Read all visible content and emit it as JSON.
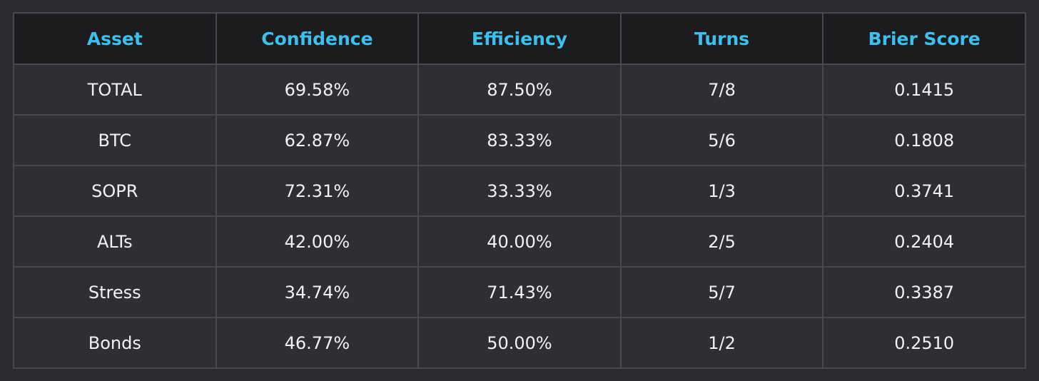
{
  "table": {
    "headers": [
      "Asset",
      "Confidence",
      "Efficiency",
      "Turns",
      "Brier Score"
    ],
    "rows": [
      [
        "TOTAL",
        "69.58%",
        "87.50%",
        "7/8",
        "0.1415"
      ],
      [
        "BTC",
        "62.87%",
        "83.33%",
        "5/6",
        "0.1808"
      ],
      [
        "SOPR",
        "72.31%",
        "33.33%",
        "1/3",
        "0.3741"
      ],
      [
        "ALTs",
        "42.00%",
        "40.00%",
        "2/5",
        "0.2404"
      ],
      [
        "Stress",
        "34.74%",
        "71.43%",
        "5/7",
        "0.3387"
      ],
      [
        "Bonds",
        "46.77%",
        "50.00%",
        "1/2",
        "0.2510"
      ]
    ]
  },
  "colors": {
    "background": "#2c2b30",
    "header_bg": "#1c1c1f",
    "header_text": "#3cc1ee",
    "cell_bg": "#2f2e33",
    "cell_text": "#f2f2f2",
    "border": "#49484d"
  }
}
